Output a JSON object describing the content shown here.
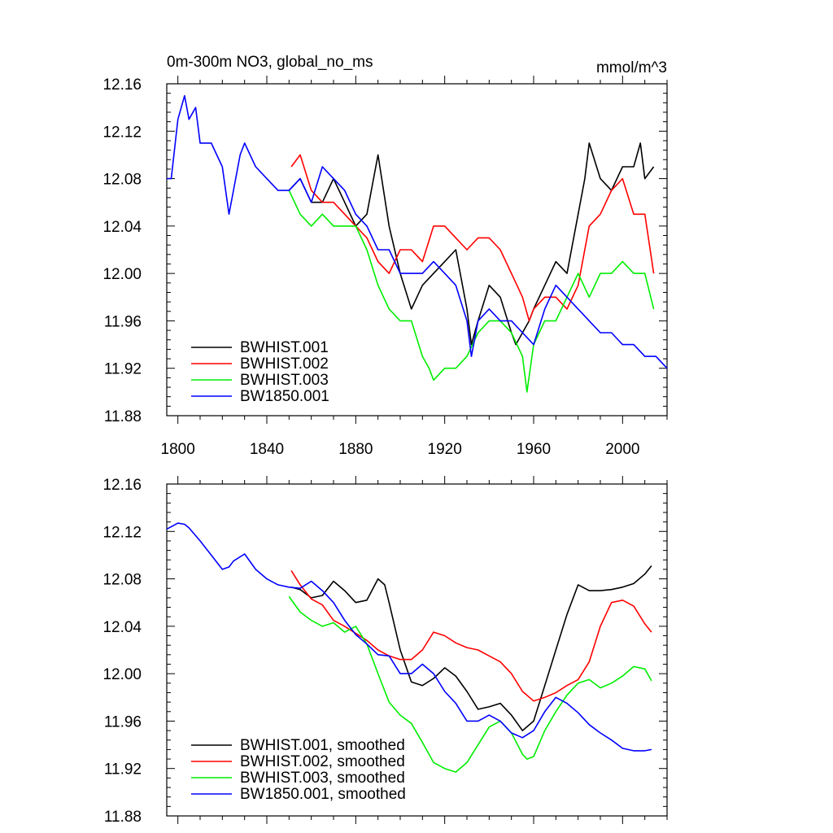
{
  "chart_data": [
    {
      "type": "line",
      "title": "0m-300m NO3, global_no_ms",
      "units": "mmol/m^3",
      "xlim": [
        1795,
        2020
      ],
      "ylim": [
        11.88,
        12.16
      ],
      "x_ticks": [
        1800,
        1840,
        1880,
        1920,
        1960,
        2000
      ],
      "x_tick_labels": [
        "1800",
        "1840",
        "1880",
        "1920",
        "1960",
        "2000"
      ],
      "y_ticks": [
        11.88,
        11.92,
        11.96,
        12.0,
        12.04,
        12.08,
        12.12,
        12.16
      ],
      "y_tick_labels": [
        "11.88",
        "11.92",
        "11.96",
        "12.00",
        "12.04",
        "12.08",
        "12.12",
        "12.16"
      ],
      "legend": "bottom-left",
      "series": [
        {
          "name": "BWHIST.001",
          "color": "#000000",
          "x": [
            1850,
            1855,
            1860,
            1865,
            1870,
            1875,
            1880,
            1885,
            1888,
            1890,
            1895,
            1900,
            1905,
            1910,
            1915,
            1920,
            1925,
            1930,
            1932,
            1935,
            1940,
            1945,
            1950,
            1952,
            1955,
            1958,
            1960,
            1965,
            1970,
            1975,
            1980,
            1983,
            1985,
            1990,
            1995,
            2000,
            2005,
            2008,
            2010,
            2014
          ],
          "y": [
            12.07,
            12.08,
            12.06,
            12.06,
            12.08,
            12.06,
            12.04,
            12.05,
            12.08,
            12.1,
            12.04,
            12.0,
            11.97,
            11.99,
            12.0,
            12.01,
            12.02,
            11.97,
            11.94,
            11.96,
            11.99,
            11.98,
            11.95,
            11.94,
            11.95,
            11.96,
            11.97,
            11.99,
            12.01,
            12.0,
            12.05,
            12.08,
            12.11,
            12.08,
            12.07,
            12.09,
            12.09,
            12.11,
            12.08,
            12.09
          ]
        },
        {
          "name": "BWHIST.002",
          "color": "#ff0000",
          "x": [
            1851,
            1855,
            1860,
            1865,
            1870,
            1875,
            1880,
            1885,
            1890,
            1895,
            1900,
            1905,
            1910,
            1915,
            1920,
            1925,
            1930,
            1935,
            1940,
            1945,
            1950,
            1955,
            1958,
            1960,
            1965,
            1970,
            1975,
            1980,
            1985,
            1990,
            1995,
            2000,
            2005,
            2010,
            2014
          ],
          "y": [
            12.09,
            12.1,
            12.07,
            12.06,
            12.06,
            12.05,
            12.04,
            12.03,
            12.01,
            12.0,
            12.02,
            12.02,
            12.01,
            12.04,
            12.04,
            12.03,
            12.02,
            12.03,
            12.03,
            12.02,
            12.0,
            11.98,
            11.96,
            11.97,
            11.98,
            11.98,
            11.97,
            11.99,
            12.04,
            12.05,
            12.07,
            12.08,
            12.05,
            12.05,
            12.0
          ]
        },
        {
          "name": "BWHIST.003",
          "color": "#00ee00",
          "x": [
            1850,
            1855,
            1860,
            1865,
            1870,
            1875,
            1880,
            1885,
            1890,
            1895,
            1900,
            1905,
            1910,
            1913,
            1915,
            1920,
            1925,
            1930,
            1935,
            1940,
            1945,
            1950,
            1955,
            1957,
            1960,
            1965,
            1970,
            1975,
            1980,
            1985,
            1990,
            1995,
            2000,
            2005,
            2010,
            2014
          ],
          "y": [
            12.07,
            12.05,
            12.04,
            12.05,
            12.04,
            12.04,
            12.04,
            12.02,
            11.99,
            11.97,
            11.96,
            11.96,
            11.93,
            11.92,
            11.91,
            11.92,
            11.92,
            11.93,
            11.95,
            11.96,
            11.96,
            11.95,
            11.93,
            11.9,
            11.94,
            11.96,
            11.96,
            11.98,
            12.0,
            11.98,
            12.0,
            12.0,
            12.01,
            12.0,
            12.0,
            11.97
          ]
        },
        {
          "name": "BW1850.001",
          "color": "#0000ff",
          "x": [
            1795,
            1797,
            1800,
            1803,
            1805,
            1808,
            1810,
            1815,
            1820,
            1823,
            1825,
            1828,
            1830,
            1835,
            1840,
            1845,
            1850,
            1855,
            1860,
            1865,
            1870,
            1875,
            1880,
            1885,
            1890,
            1895,
            1900,
            1905,
            1910,
            1915,
            1920,
            1925,
            1930,
            1932,
            1935,
            1940,
            1945,
            1950,
            1955,
            1960,
            1965,
            1970,
            1975,
            1980,
            1985,
            1990,
            1995,
            2000,
            2005,
            2010,
            2015,
            2020
          ],
          "y": [
            12.08,
            12.08,
            12.13,
            12.15,
            12.13,
            12.14,
            12.11,
            12.11,
            12.09,
            12.05,
            12.07,
            12.1,
            12.11,
            12.09,
            12.08,
            12.07,
            12.07,
            12.08,
            12.06,
            12.09,
            12.08,
            12.07,
            12.05,
            12.04,
            12.02,
            12.02,
            12.0,
            12.0,
            12.0,
            12.01,
            12.0,
            11.99,
            11.96,
            11.93,
            11.96,
            11.97,
            11.96,
            11.96,
            11.95,
            11.94,
            11.97,
            11.99,
            11.98,
            11.97,
            11.96,
            11.95,
            11.95,
            11.94,
            11.94,
            11.93,
            11.93,
            11.92
          ]
        }
      ]
    },
    {
      "type": "line",
      "xlim": [
        1795,
        2020
      ],
      "ylim": [
        11.88,
        12.16
      ],
      "y_ticks": [
        11.88,
        11.92,
        11.96,
        12.0,
        12.04,
        12.08,
        12.12,
        12.16
      ],
      "y_tick_labels": [
        "11.88",
        "11.92",
        "11.96",
        "12.00",
        "12.04",
        "12.08",
        "12.12",
        "12.16"
      ],
      "legend": "bottom-left",
      "series": [
        {
          "name": "BWHIST.001, smoothed",
          "color": "#000000",
          "x": [
            1851,
            1855,
            1860,
            1865,
            1870,
            1875,
            1880,
            1885,
            1890,
            1893,
            1895,
            1900,
            1905,
            1910,
            1915,
            1920,
            1925,
            1930,
            1935,
            1940,
            1945,
            1950,
            1955,
            1960,
            1965,
            1970,
            1975,
            1980,
            1985,
            1990,
            1995,
            2000,
            2005,
            2010,
            2013
          ],
          "y": [
            12.073,
            12.071,
            12.064,
            12.066,
            12.078,
            12.07,
            12.06,
            12.062,
            12.08,
            12.075,
            12.06,
            12.02,
            11.993,
            11.99,
            11.996,
            12.005,
            11.998,
            11.985,
            11.97,
            11.972,
            11.975,
            11.965,
            11.952,
            11.96,
            11.99,
            12.02,
            12.05,
            12.075,
            12.07,
            12.07,
            12.071,
            12.073,
            12.076,
            12.084,
            12.091
          ]
        },
        {
          "name": "BWHIST.002, smoothed",
          "color": "#ff0000",
          "x": [
            1851,
            1855,
            1860,
            1865,
            1870,
            1875,
            1880,
            1885,
            1890,
            1895,
            1900,
            1905,
            1910,
            1915,
            1920,
            1925,
            1930,
            1935,
            1940,
            1945,
            1950,
            1955,
            1960,
            1965,
            1970,
            1975,
            1980,
            1985,
            1990,
            1995,
            2000,
            2005,
            2010,
            2013
          ],
          "y": [
            12.087,
            12.075,
            12.063,
            12.058,
            12.045,
            12.04,
            12.034,
            12.028,
            12.02,
            12.015,
            12.012,
            12.012,
            12.02,
            12.035,
            12.032,
            12.026,
            12.022,
            12.02,
            12.015,
            12.01,
            12.0,
            11.985,
            11.977,
            11.98,
            11.984,
            11.99,
            11.995,
            12.01,
            12.04,
            12.06,
            12.062,
            12.057,
            12.042,
            12.035
          ]
        },
        {
          "name": "BWHIST.003, smoothed",
          "color": "#00ee00",
          "x": [
            1850,
            1855,
            1860,
            1865,
            1870,
            1875,
            1880,
            1885,
            1890,
            1895,
            1900,
            1905,
            1910,
            1915,
            1920,
            1925,
            1930,
            1935,
            1940,
            1945,
            1950,
            1955,
            1957,
            1960,
            1965,
            1970,
            1975,
            1980,
            1985,
            1990,
            1995,
            2000,
            2005,
            2010,
            2013
          ],
          "y": [
            12.065,
            12.052,
            12.045,
            12.04,
            12.043,
            12.035,
            12.04,
            12.025,
            12.0,
            11.976,
            11.965,
            11.958,
            11.942,
            11.925,
            11.92,
            11.917,
            11.925,
            11.94,
            11.955,
            11.96,
            11.95,
            11.932,
            11.928,
            11.93,
            11.952,
            11.968,
            11.982,
            11.992,
            11.995,
            11.988,
            11.992,
            11.998,
            12.006,
            12.004,
            11.994
          ]
        },
        {
          "name": "BW1850.001, smoothed",
          "color": "#0000ff",
          "x": [
            1795,
            1800,
            1803,
            1805,
            1810,
            1815,
            1820,
            1823,
            1825,
            1830,
            1835,
            1840,
            1845,
            1850,
            1855,
            1860,
            1865,
            1870,
            1875,
            1880,
            1885,
            1890,
            1895,
            1900,
            1905,
            1910,
            1915,
            1920,
            1925,
            1930,
            1935,
            1940,
            1945,
            1950,
            1955,
            1960,
            1965,
            1970,
            1975,
            1980,
            1985,
            1990,
            1995,
            2000,
            2005,
            2010,
            2013
          ],
          "y": [
            12.122,
            12.127,
            12.126,
            12.123,
            12.112,
            12.1,
            12.088,
            12.09,
            12.095,
            12.101,
            12.088,
            12.08,
            12.075,
            12.073,
            12.072,
            12.078,
            12.07,
            12.06,
            12.045,
            12.033,
            12.025,
            12.016,
            12.015,
            12.0,
            12.0,
            12.008,
            12.0,
            11.985,
            11.975,
            11.96,
            11.96,
            11.965,
            11.96,
            11.95,
            11.946,
            11.952,
            11.968,
            11.98,
            11.975,
            11.967,
            11.957,
            11.95,
            11.944,
            11.937,
            11.935,
            11.935,
            11.936
          ]
        }
      ]
    }
  ]
}
